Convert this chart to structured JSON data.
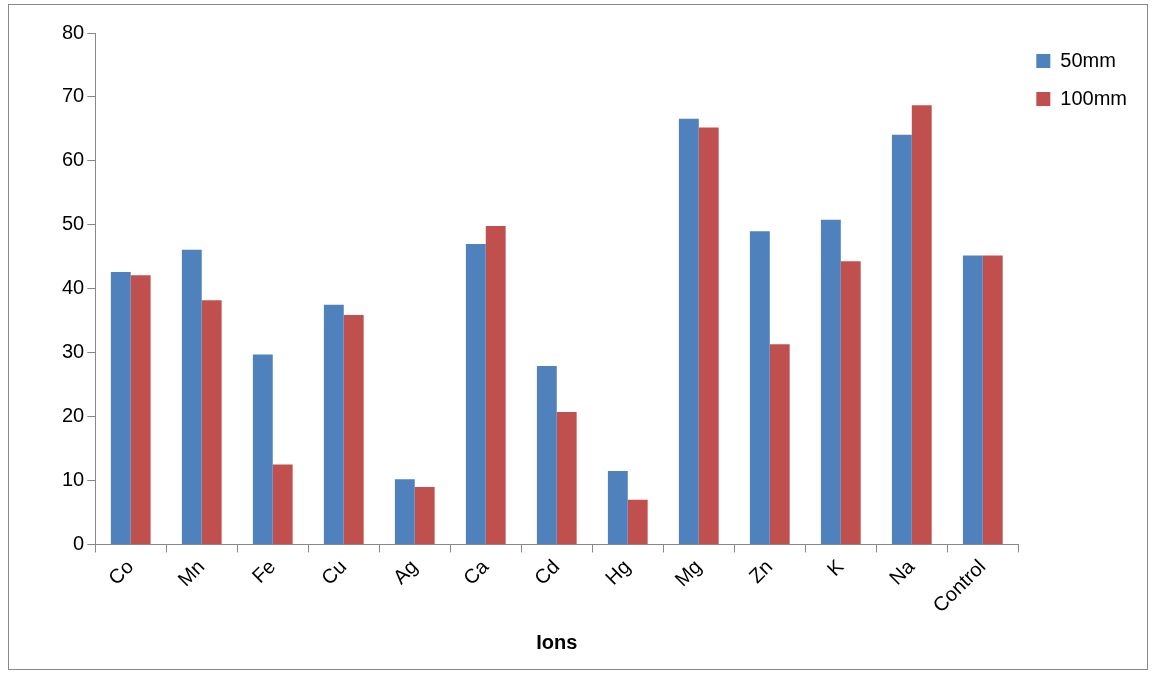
{
  "chart_data": {
    "type": "bar",
    "xlabel": "Ions",
    "categories": [
      "Co",
      "Mn",
      "Fe",
      "Cu",
      "Ag",
      "Ca",
      "Cd",
      "Hg",
      "Mg",
      "Zn",
      "K",
      "Na",
      "Control"
    ],
    "series": [
      {
        "name": "50mm",
        "color": "#4f81bd",
        "values": [
          42.6,
          46.1,
          29.7,
          37.5,
          10.2,
          47.0,
          27.9,
          11.5,
          66.6,
          49.0,
          50.8,
          64.1,
          45.2
        ]
      },
      {
        "name": "100mm",
        "color": "#c0504d",
        "values": [
          42.1,
          38.2,
          12.5,
          35.9,
          9.0,
          49.8,
          20.7,
          7.0,
          65.2,
          31.3,
          44.3,
          68.7,
          45.2
        ]
      }
    ],
    "ylim": [
      0,
      80
    ],
    "yticks": [
      0,
      10,
      20,
      30,
      40,
      50,
      60,
      70,
      80
    ],
    "grid": false,
    "legend": "top right"
  }
}
